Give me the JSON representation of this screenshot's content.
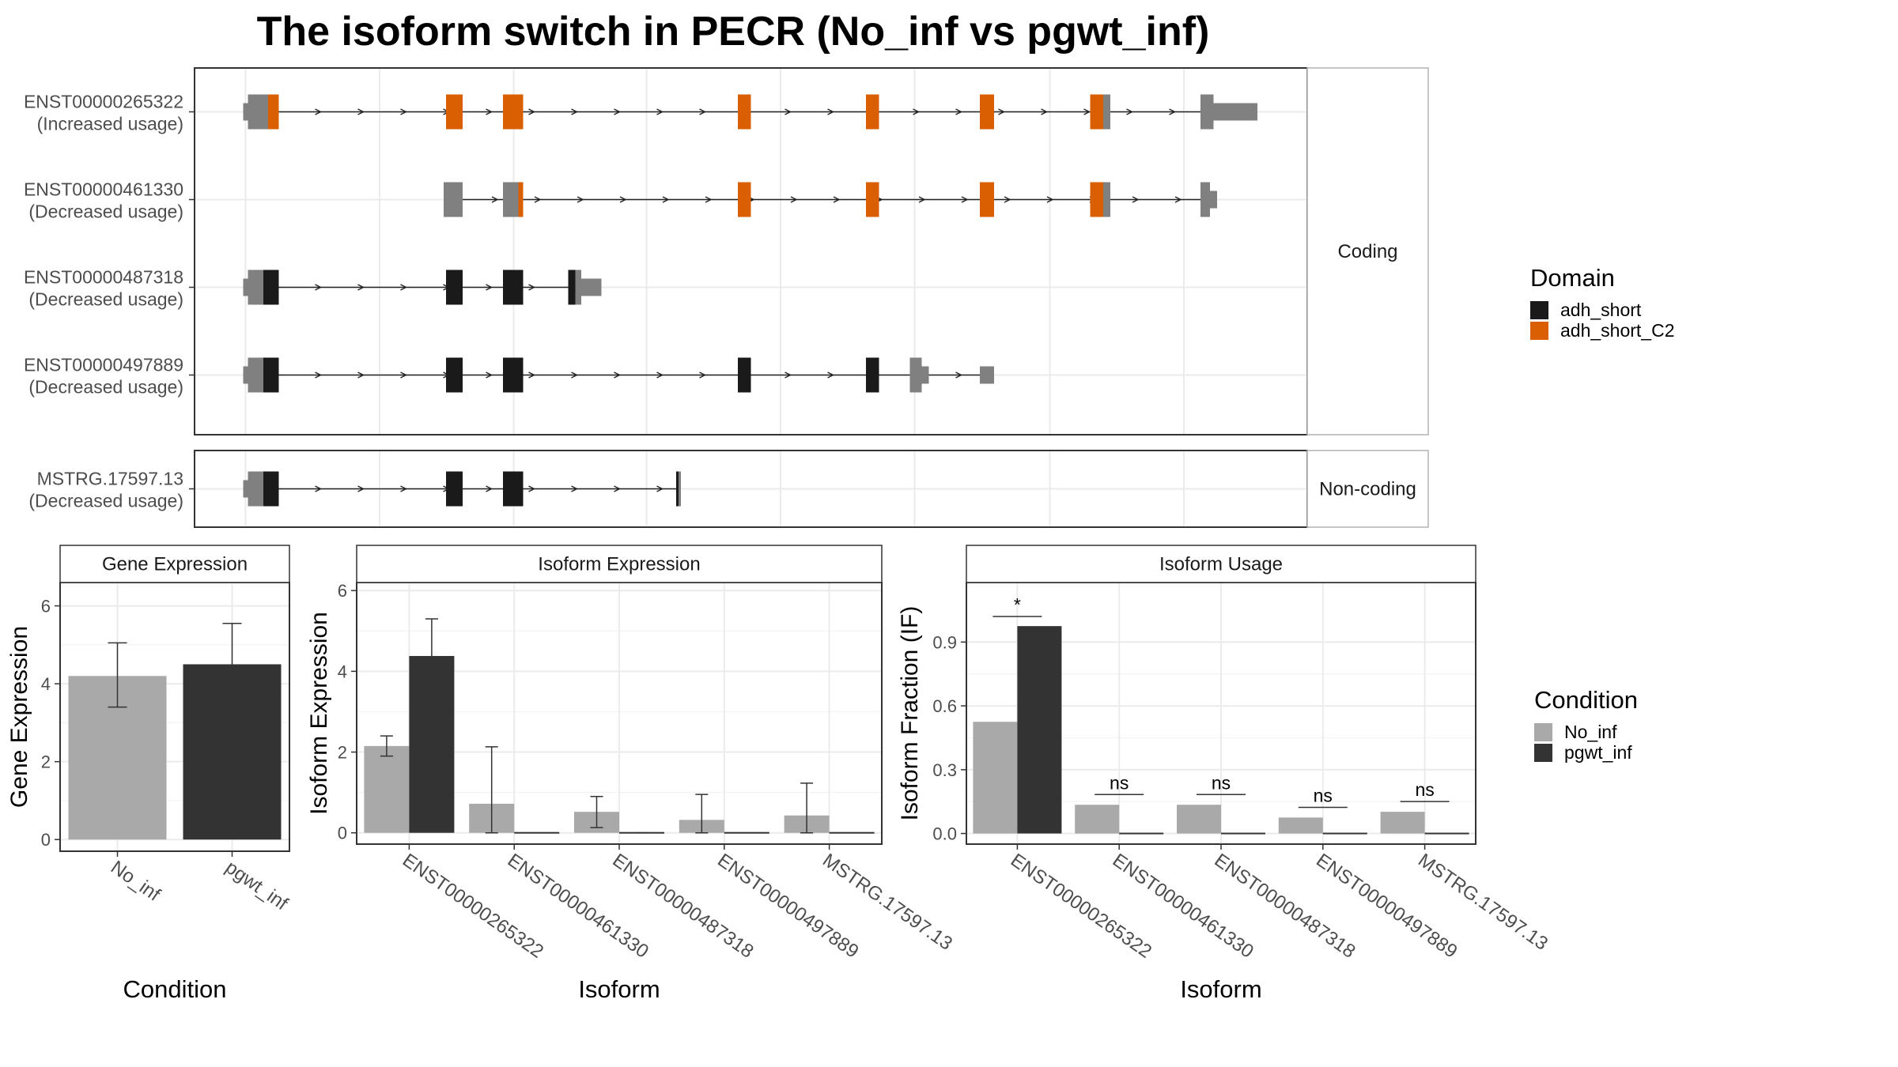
{
  "title": "The isoform switch in PECR (No_inf vs pgwt_inf)",
  "colors": {
    "utr": "#808080",
    "adh_short": "#1a1a1a",
    "adh_short_C2": "#d95f02",
    "no_inf": "#a9a9a9",
    "pgwt_inf": "#333333",
    "grid": "#ebebeb",
    "panel_border": "#333333",
    "strip_border": "#b3b3b3"
  },
  "transcripts": {
    "facets": [
      {
        "label": "Coding",
        "rows": [
          {
            "id": "ENST00000265322",
            "status": "(Increased usage)",
            "span": [
              201,
              1008
            ],
            "exons": [
              [
                201,
                205,
                "utr_thin"
              ],
              [
                205,
                222,
                "utr"
              ],
              [
                222,
                231,
                "adh_short_C2"
              ],
              [
                372,
                386,
                "adh_short_C2"
              ],
              [
                420,
                437,
                "adh_short_C2"
              ],
              [
                618,
                629,
                "adh_short_C2"
              ],
              [
                726,
                737,
                "adh_short_C2"
              ],
              [
                822,
                834,
                "adh_short_C2"
              ],
              [
                915,
                926,
                "adh_short_C2"
              ],
              [
                926,
                932,
                "utr"
              ],
              [
                1008,
                1019,
                "utr"
              ],
              [
                1019,
                1056,
                "utr_thin"
              ]
            ]
          },
          {
            "id": "ENST00000461330",
            "status": "(Decreased usage)",
            "span": [
              386,
              1008
            ],
            "exons": [
              [
                370,
                386,
                "utr"
              ],
              [
                420,
                433,
                "utr"
              ],
              [
                433,
                437,
                "adh_short_C2"
              ],
              [
                618,
                629,
                "adh_short_C2"
              ],
              [
                726,
                737,
                "adh_short_C2"
              ],
              [
                822,
                834,
                "adh_short_C2"
              ],
              [
                915,
                926,
                "adh_short_C2"
              ],
              [
                926,
                932,
                "utr"
              ],
              [
                1008,
                1016,
                "utr"
              ],
              [
                1016,
                1022,
                "utr_thin"
              ]
            ]
          },
          {
            "id": "ENST00000487318",
            "status": "(Decreased usage)",
            "span": [
              201,
              475
            ],
            "exons": [
              [
                201,
                205,
                "utr_thin"
              ],
              [
                205,
                218,
                "utr"
              ],
              [
                218,
                231,
                "adh_short"
              ],
              [
                372,
                386,
                "adh_short"
              ],
              [
                420,
                437,
                "adh_short"
              ],
              [
                475,
                481,
                "adh_short"
              ],
              [
                481,
                486,
                "utr"
              ],
              [
                486,
                503,
                "utr_thin"
              ]
            ]
          },
          {
            "id": "ENST00000497889",
            "status": "(Decreased usage)",
            "span": [
              201,
              822
            ],
            "exons": [
              [
                201,
                205,
                "utr_thin"
              ],
              [
                205,
                218,
                "utr"
              ],
              [
                218,
                231,
                "adh_short"
              ],
              [
                372,
                386,
                "adh_short"
              ],
              [
                420,
                437,
                "adh_short"
              ],
              [
                618,
                629,
                "adh_short"
              ],
              [
                726,
                737,
                "adh_short"
              ],
              [
                763,
                773,
                "utr"
              ],
              [
                773,
                779,
                "utr_thin"
              ],
              [
                822,
                834,
                "utr_thin"
              ]
            ]
          }
        ]
      },
      {
        "label": "Non-coding",
        "rows": [
          {
            "id": "MSTRG.17597.13",
            "status": "(Decreased usage)",
            "span": [
              201,
              566
            ],
            "exons": [
              [
                201,
                205,
                "utr_thin"
              ],
              [
                205,
                218,
                "utr"
              ],
              [
                218,
                231,
                "adh_short"
              ],
              [
                372,
                386,
                "adh_short"
              ],
              [
                420,
                437,
                "adh_short"
              ],
              [
                566,
                568,
                "adh_short"
              ],
              [
                568,
                570,
                "utr"
              ]
            ]
          }
        ]
      }
    ]
  },
  "legend_domain": {
    "title": "Domain",
    "items": [
      {
        "label": "adh_short",
        "color": "#1a1a1a"
      },
      {
        "label": "adh_short_C2",
        "color": "#d95f02"
      }
    ]
  },
  "legend_condition": {
    "title": "Condition",
    "items": [
      {
        "label": "No_inf",
        "color": "#a9a9a9"
      },
      {
        "label": "pgwt_inf",
        "color": "#333333"
      }
    ]
  },
  "chart_data": [
    {
      "type": "bar",
      "panel": "gene",
      "title": "Gene Expression",
      "xlabel": "Condition",
      "ylabel": "Gene Expression",
      "categories": [
        "No_inf",
        "pgwt_inf"
      ],
      "values": [
        4.2,
        4.5
      ],
      "errors": [
        [
          3.4,
          5.05
        ],
        [
          3.5,
          5.55
        ]
      ],
      "ylim": [
        -0.3,
        6.6
      ],
      "yticks": [
        0,
        2,
        4,
        6
      ],
      "yticklabels": [
        "0",
        "2",
        "4",
        "6"
      ]
    },
    {
      "type": "bar",
      "panel": "iso_expr",
      "title": "Isoform Expression",
      "xlabel": "Isoform",
      "ylabel": "Isoform Expression",
      "categories": [
        "ENST00000265322",
        "ENST00000461330",
        "ENST00000487318",
        "ENST00000497889",
        "MSTRG.17597.13"
      ],
      "series": [
        {
          "name": "No_inf",
          "values": [
            2.15,
            0.72,
            0.52,
            0.32,
            0.43
          ],
          "errors": [
            [
              1.9,
              2.4
            ],
            [
              0.0,
              2.13
            ],
            [
              0.13,
              0.9
            ],
            [
              0.0,
              0.95
            ],
            [
              0.0,
              1.23
            ]
          ]
        },
        {
          "name": "pgwt_inf",
          "values": [
            4.38,
            0.0,
            0.0,
            0.0,
            0.0
          ],
          "errors": [
            [
              3.45,
              5.3
            ],
            [
              0.0,
              0.0
            ],
            [
              0.0,
              0.0
            ],
            [
              0.0,
              0.0
            ],
            [
              0.0,
              0.0
            ]
          ]
        }
      ],
      "ylim": [
        -0.28,
        6.2
      ],
      "yticks": [
        0,
        2,
        4,
        6
      ],
      "yticklabels": [
        "0",
        "2",
        "4",
        "6"
      ]
    },
    {
      "type": "bar",
      "panel": "iso_usage",
      "title": "Isoform Usage",
      "xlabel": "Isoform",
      "ylabel": "Isoform Fraction (IF)",
      "categories": [
        "ENST00000265322",
        "ENST00000461330",
        "ENST00000487318",
        "ENST00000497889",
        "MSTRG.17597.13"
      ],
      "series": [
        {
          "name": "No_inf",
          "values": [
            0.525,
            0.135,
            0.135,
            0.075,
            0.102
          ]
        },
        {
          "name": "pgwt_inf",
          "values": [
            0.975,
            0.0,
            0.0,
            0.0,
            0.0
          ]
        }
      ],
      "significance": [
        {
          "label": "*",
          "y": 1.02
        },
        {
          "label": "ns",
          "y": 0.183
        },
        {
          "label": "ns",
          "y": 0.183
        },
        {
          "label": "ns",
          "y": 0.123
        },
        {
          "label": "ns",
          "y": 0.15
        }
      ],
      "ylim": [
        -0.05,
        1.18
      ],
      "yticks": [
        0,
        0.3,
        0.6,
        0.9
      ],
      "yticklabels": [
        "0.0",
        "0.3",
        "0.6",
        "0.9"
      ]
    }
  ]
}
